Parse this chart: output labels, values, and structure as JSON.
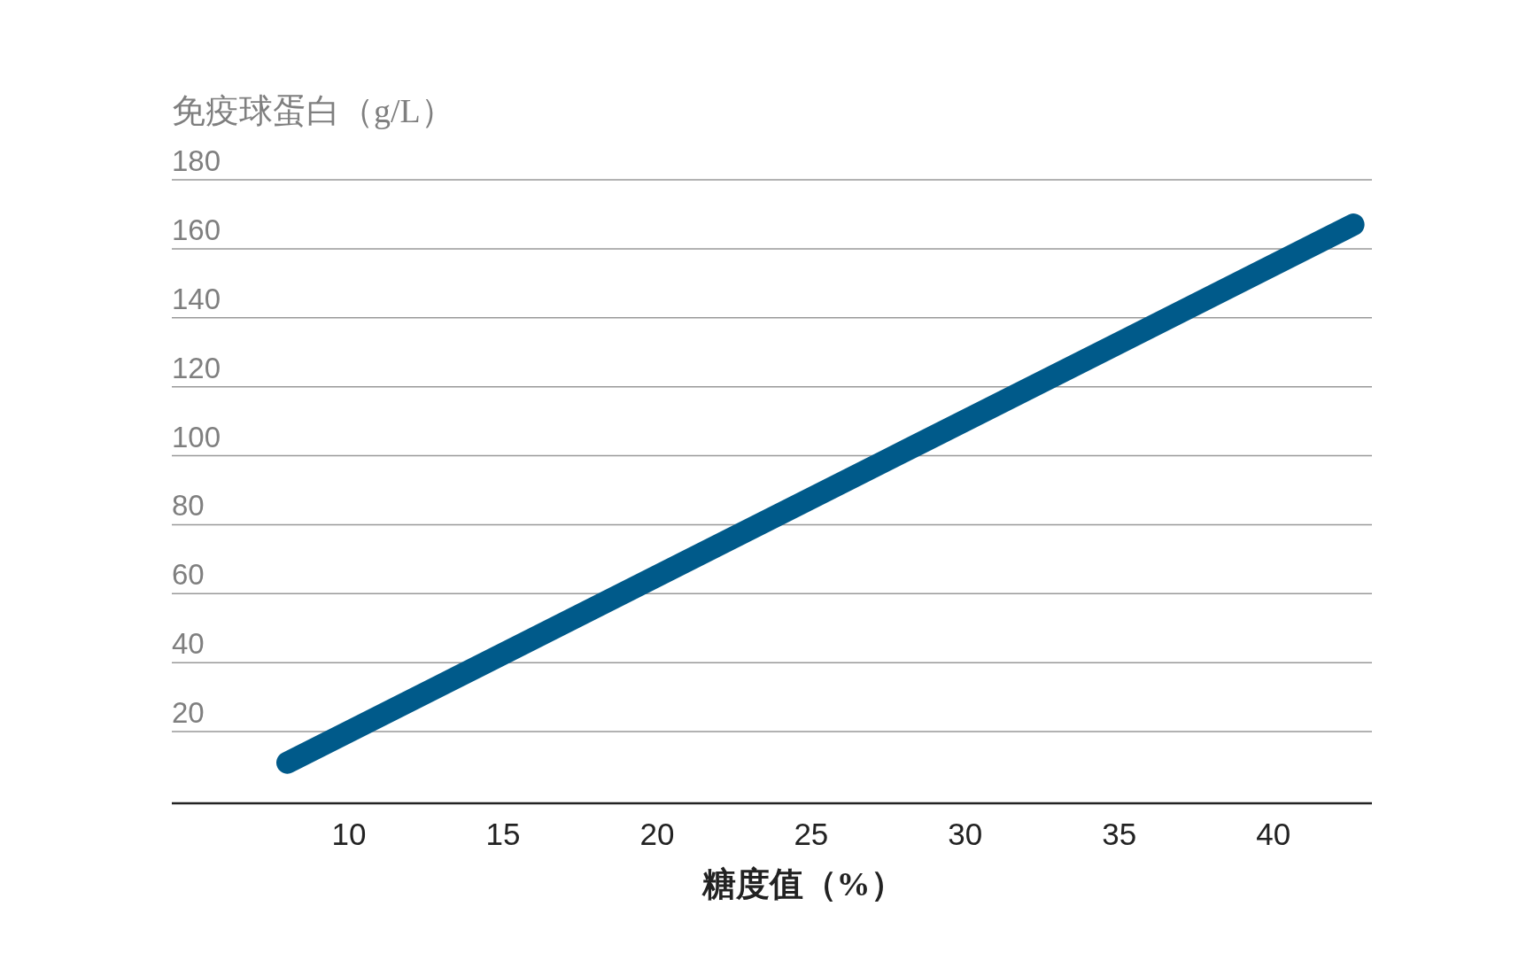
{
  "chart_data": {
    "type": "line",
    "xlabel": "糖度值（%）",
    "ylabel": "免疫球蛋白（g/L）",
    "x": [
      8,
      42.6
    ],
    "series": [
      {
        "color": "#005a8a",
        "values": [
          11,
          167
        ]
      }
    ],
    "xlim": [
      4.25,
      43.2
    ],
    "xticks": [
      10,
      15,
      20,
      25,
      30,
      35,
      40
    ],
    "ylim": [
      0,
      180
    ],
    "yticks": [
      20,
      40,
      60,
      80,
      100,
      120,
      140,
      160,
      180
    ],
    "grid": "y",
    "line_style": "solid"
  }
}
